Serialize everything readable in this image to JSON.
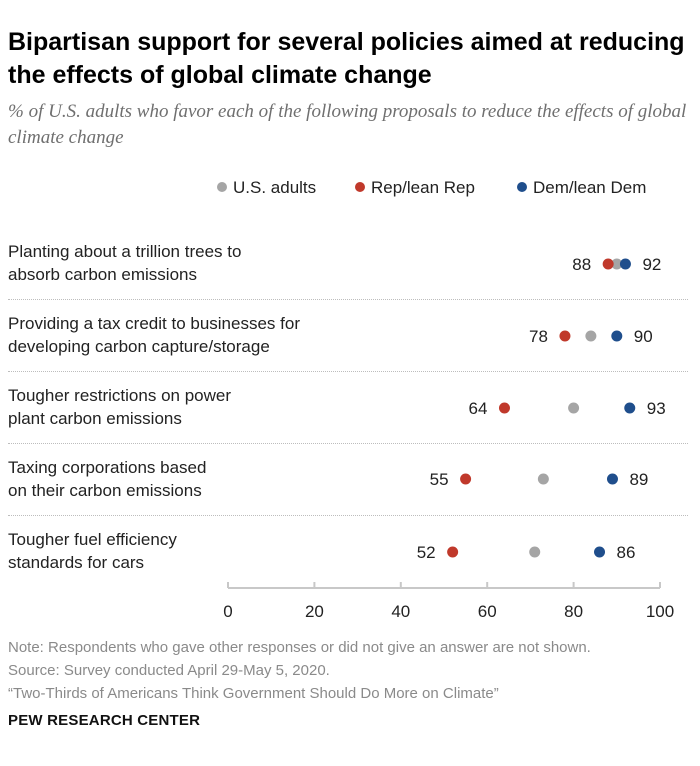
{
  "title": "Bipartisan support for several policies aimed at reducing the effects of global climate change",
  "subtitle": "% of U.S. adults who favor each of the following proposals to reduce the effects of global climate change",
  "legend": [
    {
      "label": "U.S. adults",
      "color": "#a5a5a5"
    },
    {
      "label": "Rep/lean Rep",
      "color": "#c0392b"
    },
    {
      "label": "Dem/lean Dem",
      "color": "#1f4e8c"
    }
  ],
  "chart_data": {
    "type": "scatter",
    "categories": [
      "Planting about a trillion trees to absorb carbon emissions",
      "Providing a tax credit to businesses for developing carbon capture/storage",
      "Tougher restrictions on power plant carbon emissions",
      "Taxing corporations based on their carbon emissions",
      "Tougher fuel efficiency standards for cars"
    ],
    "category_lines": [
      [
        "Planting about a trillion trees to",
        "absorb carbon emissions"
      ],
      [
        "Providing a tax credit to businesses for",
        "developing carbon capture/storage"
      ],
      [
        "Tougher restrictions on power",
        "plant carbon emissions"
      ],
      [
        "Taxing corporations based",
        "on their carbon emissions"
      ],
      [
        "Tougher fuel efficiency",
        "standards for cars"
      ]
    ],
    "series": [
      {
        "name": "U.S. adults",
        "color": "#a5a5a5",
        "values": [
          90,
          84,
          80,
          73,
          71
        ],
        "labeled": false
      },
      {
        "name": "Rep/lean Rep",
        "color": "#c0392b",
        "values": [
          88,
          78,
          64,
          55,
          52
        ],
        "labeled": true
      },
      {
        "name": "Dem/lean Dem",
        "color": "#1f4e8c",
        "values": [
          92,
          90,
          93,
          89,
          86
        ],
        "labeled": true
      }
    ],
    "xlim": [
      0,
      100
    ],
    "xticks": [
      0,
      20,
      40,
      60,
      80,
      100
    ],
    "xlabel": "",
    "ylabel": "",
    "grid": false
  },
  "notes": [
    "Note: Respondents who gave other responses or did not give an answer are not shown.",
    "Source: Survey conducted April 29-May 5, 2020.",
    "“Two-Thirds of Americans Think Government Should Do More on Climate”"
  ],
  "brand": "PEW RESEARCH CENTER"
}
